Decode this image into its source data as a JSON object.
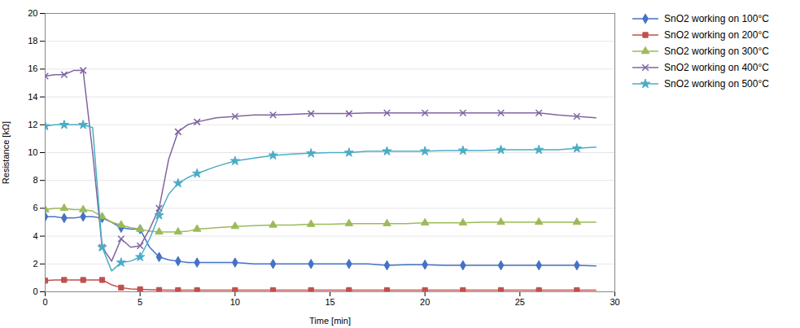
{
  "chart_data": {
    "type": "line",
    "xlabel": "Time [min]",
    "ylabel": "Resistance [kΩ]",
    "xlim": [
      0,
      30
    ],
    "ylim": [
      0,
      20
    ],
    "xticks": [
      0,
      5,
      10,
      15,
      20,
      25,
      30
    ],
    "yticks": [
      0,
      2,
      4,
      6,
      8,
      10,
      12,
      14,
      16,
      18,
      20
    ],
    "grid": true,
    "legend": "right",
    "x": [
      0,
      0.5,
      1,
      1.5,
      2,
      2.5,
      3,
      3.5,
      4,
      4.5,
      5,
      5.5,
      6,
      6.5,
      7,
      7.5,
      8,
      9,
      10,
      11,
      12,
      13,
      14,
      15,
      16,
      17,
      18,
      19,
      20,
      21,
      22,
      23,
      24,
      25,
      26,
      27,
      28,
      29
    ],
    "series": [
      {
        "name": "SnO2 working on 100°C",
        "color": "#4472C4",
        "marker": "diamond",
        "values": [
          5.4,
          5.4,
          5.3,
          5.3,
          5.4,
          5.4,
          5.3,
          5.0,
          4.6,
          4.5,
          4.5,
          3.2,
          2.5,
          2.3,
          2.2,
          2.1,
          2.1,
          2.1,
          2.1,
          2.0,
          2.0,
          2.0,
          2.0,
          2.0,
          2.0,
          2.0,
          1.9,
          1.95,
          1.95,
          1.9,
          1.9,
          1.9,
          1.9,
          1.9,
          1.9,
          1.9,
          1.9,
          1.85
        ]
      },
      {
        "name": "SnO2 working on 200°C",
        "color": "#C0504D",
        "marker": "square",
        "values": [
          0.8,
          0.85,
          0.85,
          0.85,
          0.85,
          0.85,
          0.85,
          0.5,
          0.3,
          0.2,
          0.18,
          0.15,
          0.13,
          0.12,
          0.12,
          0.12,
          0.12,
          0.12,
          0.12,
          0.12,
          0.12,
          0.12,
          0.12,
          0.12,
          0.12,
          0.12,
          0.12,
          0.12,
          0.12,
          0.12,
          0.12,
          0.12,
          0.12,
          0.12,
          0.12,
          0.12,
          0.12,
          0.12
        ]
      },
      {
        "name": "SnO2 working on 300°C",
        "color": "#9BBB59",
        "marker": "triangle",
        "values": [
          5.9,
          6.0,
          6.0,
          5.9,
          5.9,
          5.8,
          5.4,
          5.0,
          4.8,
          4.6,
          4.5,
          4.35,
          4.3,
          4.3,
          4.3,
          4.35,
          4.5,
          4.6,
          4.7,
          4.75,
          4.8,
          4.8,
          4.85,
          4.85,
          4.9,
          4.9,
          4.9,
          4.9,
          4.95,
          4.95,
          4.95,
          5.0,
          5.0,
          5.0,
          5.0,
          5.0,
          5.0,
          5.0
        ]
      },
      {
        "name": "SnO2 working on 400°C",
        "color": "#8064A2",
        "marker": "times",
        "values": [
          15.5,
          15.6,
          15.6,
          15.9,
          15.9,
          10.0,
          3.2,
          2.2,
          3.8,
          3.2,
          3.3,
          4.5,
          6.0,
          9.5,
          11.5,
          12.0,
          12.2,
          12.5,
          12.6,
          12.7,
          12.7,
          12.75,
          12.8,
          12.8,
          12.8,
          12.85,
          12.85,
          12.85,
          12.85,
          12.85,
          12.85,
          12.85,
          12.85,
          12.85,
          12.85,
          12.7,
          12.6,
          12.5
        ]
      },
      {
        "name": "SnO2 working on 500°C",
        "color": "#4BACC6",
        "marker": "star",
        "values": [
          11.9,
          12.0,
          12.0,
          12.0,
          12.0,
          11.8,
          3.2,
          1.5,
          2.1,
          2.2,
          2.5,
          3.8,
          5.5,
          7.0,
          7.8,
          8.2,
          8.5,
          9.0,
          9.4,
          9.6,
          9.8,
          9.9,
          9.95,
          10.0,
          10.0,
          10.1,
          10.1,
          10.1,
          10.1,
          10.15,
          10.15,
          10.15,
          10.2,
          10.2,
          10.2,
          10.2,
          10.3,
          10.4
        ]
      }
    ]
  }
}
